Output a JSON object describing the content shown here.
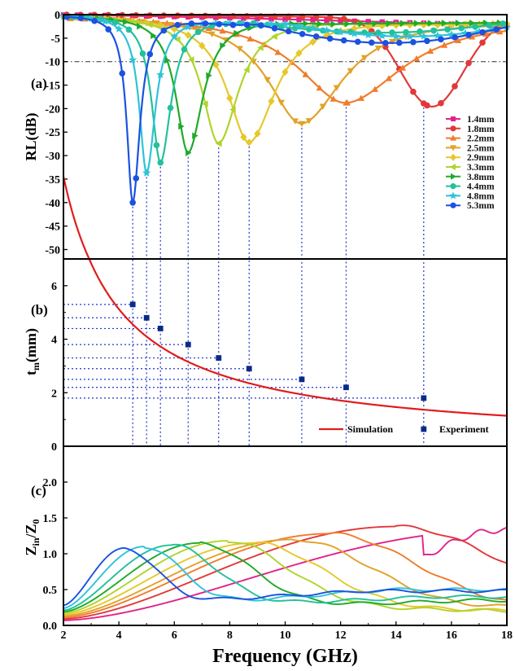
{
  "chart_data": [
    {
      "panel_label": "(a)",
      "type": "line",
      "ylabel": "RL(dB)",
      "xlim": [
        2,
        18
      ],
      "ylim": [
        -52,
        0
      ],
      "yticks": [
        0,
        -5,
        -10,
        -15,
        -20,
        -25,
        -30,
        -35,
        -40,
        -45,
        -50
      ],
      "reference_line": -10,
      "legend_position": "right",
      "series": [
        {
          "name": "1.4mm",
          "marker": "square",
          "color": "#e0238a",
          "min_freq": 22,
          "min_rl": -2.5,
          "width": 12,
          "points": [
            [
              2,
              -0.05
            ],
            [
              4,
              -0.2
            ],
            [
              6,
              -0.3
            ],
            [
              8,
              -0.5
            ],
            [
              10,
              -0.7
            ],
            [
              12,
              -1.0
            ],
            [
              14,
              -1.5
            ],
            [
              16,
              -2.0
            ],
            [
              18,
              -2.3
            ]
          ]
        },
        {
          "name": "1.8mm",
          "marker": "circle",
          "color": "#e2383a",
          "min_freq": 15.0,
          "min_rl": -18.9,
          "width": 0.6,
          "points": [
            [
              2,
              -0.1
            ],
            [
              10,
              -2.6
            ],
            [
              13,
              -7
            ],
            [
              14,
              -15.6
            ],
            [
              15,
              -18.9
            ],
            [
              16,
              -18.2
            ],
            [
              17,
              -14
            ],
            [
              18,
              -11
            ]
          ]
        },
        {
          "name": "2.2mm",
          "marker": "triangle-up",
          "color": "#f07c2e",
          "min_freq": 12.2,
          "min_rl": -18.8,
          "width": 0.55,
          "points": [
            [
              2,
              -0.1
            ],
            [
              8,
              -2.6
            ],
            [
              11,
              -8
            ],
            [
              12.2,
              -18.8
            ],
            [
              13.5,
              -10
            ],
            [
              16,
              -4.5
            ],
            [
              18,
              -3.9
            ]
          ]
        },
        {
          "name": "2.5mm",
          "marker": "triangle-down",
          "color": "#e3a128",
          "min_freq": 10.6,
          "min_rl": -23.2,
          "width": 0.45,
          "points": [
            [
              2,
              -0.2
            ],
            [
              7,
              -3
            ],
            [
              9.5,
              -8.8
            ],
            [
              10.6,
              -23.2
            ],
            [
              12,
              -9
            ],
            [
              14,
              -4.6
            ],
            [
              18,
              -3
            ]
          ]
        },
        {
          "name": "2.9mm",
          "marker": "diamond",
          "color": "#e6c82c",
          "min_freq": 8.7,
          "min_rl": -27.2,
          "width": 0.35,
          "points": [
            [
              2,
              -0.3
            ],
            [
              6,
              -3.8
            ],
            [
              8,
              -10
            ],
            [
              8.7,
              -27.2
            ],
            [
              10,
              -8
            ],
            [
              12,
              -4.6
            ],
            [
              18,
              -2.5
            ]
          ]
        },
        {
          "name": "3.3mm",
          "marker": "triangle-left",
          "color": "#b0d42c",
          "min_freq": 7.6,
          "min_rl": -27.4,
          "width": 0.3,
          "points": [
            [
              2,
              -0.4
            ],
            [
              5,
              -3.2
            ],
            [
              7,
              -10.5
            ],
            [
              7.6,
              -27.4
            ],
            [
              8.5,
              -8
            ],
            [
              10,
              -4.6
            ],
            [
              18,
              -2.7
            ]
          ]
        },
        {
          "name": "3.8mm",
          "marker": "triangle-right",
          "color": "#1faa2a",
          "min_freq": 6.5,
          "min_rl": -29.4,
          "width": 0.26,
          "points": [
            [
              2,
              -0.5
            ],
            [
              4.5,
              -3
            ],
            [
              6,
              -10.5
            ],
            [
              6.5,
              -29.4
            ],
            [
              7.5,
              -10
            ],
            [
              9,
              -4.8
            ],
            [
              18,
              -2.9
            ]
          ]
        },
        {
          "name": "4.4mm",
          "marker": "circle",
          "color": "#22c19a",
          "min_freq": 5.5,
          "min_rl": -31.5,
          "width": 0.22,
          "points": [
            [
              2,
              -0.8
            ],
            [
              4,
              -4.5
            ],
            [
              5,
              -10.5
            ],
            [
              5.5,
              -31.5
            ],
            [
              6.2,
              -10
            ],
            [
              8,
              -4
            ],
            [
              18,
              -6
            ]
          ]
        },
        {
          "name": "4.8mm",
          "marker": "star",
          "color": "#2ec3d8",
          "min_freq": 5.0,
          "min_rl": -33.7,
          "width": 0.2,
          "points": [
            [
              2,
              -1
            ],
            [
              3.5,
              -4
            ],
            [
              4.6,
              -15
            ],
            [
              5,
              -33.7
            ],
            [
              5.6,
              -12
            ],
            [
              7,
              -4
            ],
            [
              18,
              -8
            ]
          ]
        },
        {
          "name": "5.3mm",
          "marker": "circle",
          "color": "#1b52e0",
          "min_freq": 4.5,
          "min_rl": -40.0,
          "width": 0.18,
          "points": [
            [
              2,
              -1.5
            ],
            [
              3,
              -4
            ],
            [
              4.2,
              -18.5
            ],
            [
              4.5,
              -40
            ],
            [
              5,
              -15
            ],
            [
              6,
              -5
            ],
            [
              18,
              -5
            ]
          ]
        }
      ]
    },
    {
      "panel_label": "(b)",
      "type": "scatter",
      "ylabel": "t_m(mm)",
      "ylabel_main": "t",
      "ylabel_sub": "m",
      "ylabel_tail": "(mm)",
      "xlim": [
        2,
        18
      ],
      "ylim": [
        0,
        7
      ],
      "yticks": [
        0,
        2,
        4,
        6
      ],
      "legend_position": "bottom-right",
      "series": [
        {
          "name": "Simulation",
          "kind": "line",
          "color": "#e11c1c",
          "formula": "t = 20.5 / f",
          "x_start": 2,
          "x_end": 18
        },
        {
          "name": "Experiment",
          "kind": "marker",
          "marker": "square",
          "color": "#0a2a8a",
          "x": [
            4.5,
            5.0,
            5.5,
            6.5,
            7.6,
            8.7,
            10.6,
            12.2,
            15.0
          ],
          "y": [
            5.3,
            4.8,
            4.4,
            3.8,
            3.3,
            2.9,
            2.5,
            2.2,
            1.8
          ]
        }
      ]
    },
    {
      "panel_label": "(c)",
      "type": "line",
      "ylabel": "Zin/Z0",
      "ylabel_parts": [
        "Z",
        "in",
        "/Z",
        "0"
      ],
      "xlabel": "Frequency (GHz)",
      "xlim": [
        2,
        18
      ],
      "ylim": [
        0,
        2.5
      ],
      "yticks": [
        0.0,
        0.5,
        1.0,
        1.5,
        2.0
      ],
      "xticks": [
        2,
        4,
        6,
        8,
        10,
        12,
        14,
        16,
        18
      ],
      "series": [
        {
          "name": "1.4mm",
          "color": "#e0238a",
          "peak_x": 17.8,
          "peak_y": 1.33,
          "start_y": 0.07,
          "tail_y": 1.25
        },
        {
          "name": "1.8mm",
          "color": "#e2383a",
          "peak_x": 14.0,
          "peak_y": 1.38,
          "start_y": 0.09,
          "tail_y": 0.7
        },
        {
          "name": "2.2mm",
          "color": "#f07c2e",
          "peak_x": 11.6,
          "peak_y": 1.28,
          "start_y": 0.11,
          "tail_y": 0.3
        },
        {
          "name": "2.5mm",
          "color": "#e3a128",
          "peak_x": 10.3,
          "peak_y": 1.2,
          "start_y": 0.13,
          "tail_y": 0.3
        },
        {
          "name": "2.9mm",
          "color": "#e6c82c",
          "peak_x": 8.9,
          "peak_y": 1.15,
          "start_y": 0.15,
          "tail_y": 0.2
        },
        {
          "name": "3.3mm",
          "color": "#b0d42c",
          "peak_x": 7.9,
          "peak_y": 1.18,
          "start_y": 0.17,
          "tail_y": 0.2
        },
        {
          "name": "3.8mm",
          "color": "#1faa2a",
          "peak_x": 6.9,
          "peak_y": 1.15,
          "start_y": 0.19,
          "tail_y": 0.35
        },
        {
          "name": "4.4mm",
          "color": "#22c19a",
          "peak_x": 5.9,
          "peak_y": 1.12,
          "start_y": 0.21,
          "tail_y": 0.4
        },
        {
          "name": "4.8mm",
          "color": "#2ec3d8",
          "peak_x": 4.9,
          "peak_y": 1.1,
          "start_y": 0.24,
          "tail_y": 0.5
        },
        {
          "name": "5.3mm",
          "color": "#1b52e0",
          "peak_x": 4.2,
          "peak_y": 1.08,
          "start_y": 0.28,
          "tail_y": 0.48
        }
      ]
    }
  ]
}
